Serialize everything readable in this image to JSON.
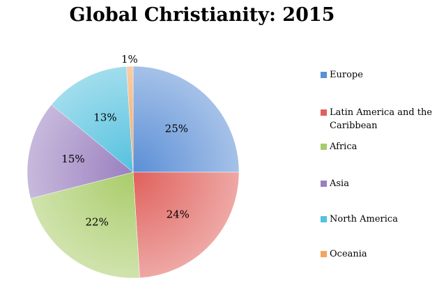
{
  "chart_data": {
    "type": "pie",
    "title": "Global Christianity: 2015",
    "slices": [
      {
        "name": "Europe",
        "value": 25,
        "label": "25%",
        "color": "#5b8fd6"
      },
      {
        "name": "Latin America and the Caribbean",
        "value": 24,
        "label": "24%",
        "color": "#e0605c"
      },
      {
        "name": "Africa",
        "value": 22,
        "label": "22%",
        "color": "#a9cc6a"
      },
      {
        "name": "Asia",
        "value": 15,
        "label": "15%",
        "color": "#9a7fbf"
      },
      {
        "name": "North America",
        "value": 13,
        "label": "13%",
        "color": "#54c1df"
      },
      {
        "name": "Oceania",
        "value": 1,
        "label": "1%",
        "color": "#f3a55e"
      }
    ],
    "legend_position": "right",
    "start_angle": "12 o'clock",
    "direction": "clockwise"
  }
}
